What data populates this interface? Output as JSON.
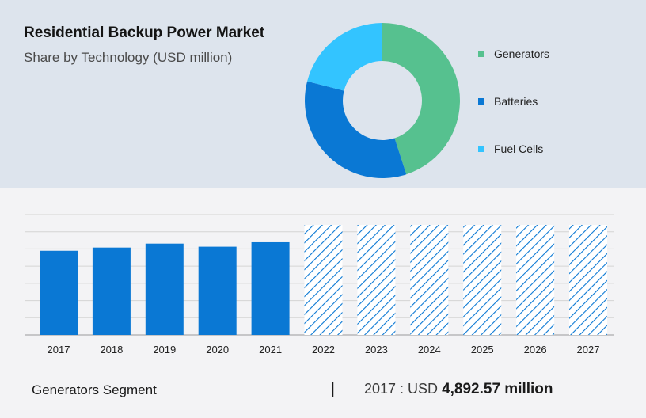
{
  "title": "Residential Backup Power Market",
  "subtitle": "Share by Technology (USD million)",
  "colors": {
    "generators": "#56c18f",
    "batteries": "#0a78d4",
    "fuel_cells": "#33c4ff",
    "bar": "#0a78d4",
    "forecast_hatch": "#0a78d4"
  },
  "chart_data": [
    {
      "type": "pie",
      "style": "donut",
      "categories": [
        "Generators",
        "Batteries",
        "Fuel Cells"
      ],
      "values": [
        45,
        34,
        21
      ],
      "unit": "percent",
      "legend_position": "right"
    },
    {
      "type": "bar",
      "categories": [
        "2017",
        "2018",
        "2019",
        "2020",
        "2021",
        "2022",
        "2023",
        "2024",
        "2025",
        "2026",
        "2027"
      ],
      "values": [
        4892.57,
        5080,
        5310,
        5130,
        5390,
        6400,
        6400,
        6400,
        6400,
        6400,
        6400
      ],
      "forecast_from": "2022",
      "ylim": [
        0,
        7000
      ],
      "grid": true,
      "xlabel": "",
      "ylabel": ""
    }
  ],
  "footer": {
    "segment_label": "Generators Segment",
    "separator": "|",
    "year_prefix": "2017 : USD ",
    "value": "4,892.57 million"
  }
}
